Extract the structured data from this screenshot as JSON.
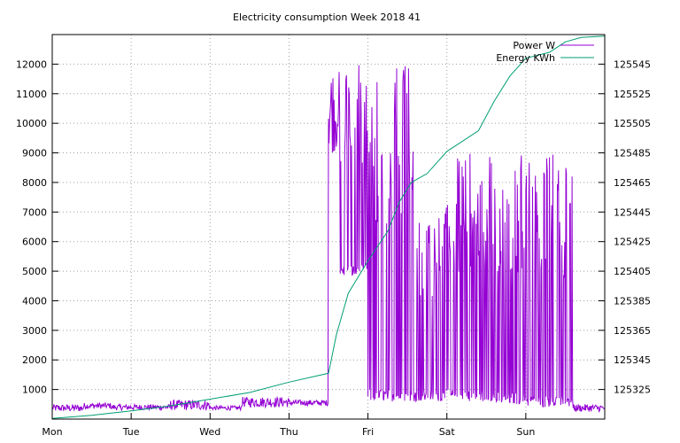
{
  "chart_data": {
    "type": "line",
    "title": "Electricity consumption Week 2018 41",
    "x_ticks": [
      "Mon",
      "Tue",
      "Wed",
      "Thu",
      "Fri",
      "Sat",
      "Sun"
    ],
    "y_left_ticks": [
      1000,
      2000,
      3000,
      4000,
      5000,
      6000,
      7000,
      8000,
      9000,
      10000,
      11000,
      12000
    ],
    "y_right_ticks": [
      125325,
      125345,
      125365,
      125385,
      125405,
      125425,
      125445,
      125465,
      125485,
      125505,
      125525,
      125545
    ],
    "y_left_range": [
      0,
      13000
    ],
    "y_right_range": [
      125305,
      125565
    ],
    "x_range_days": [
      0,
      7
    ],
    "grid": true,
    "legend_position": "top-right",
    "series": [
      {
        "name": "Power W",
        "axis": "left",
        "color": "#9400d3",
        "segments": [
          {
            "x_start": 0.0,
            "x_end": 0.4,
            "low": 250,
            "high": 500
          },
          {
            "x_start": 0.4,
            "x_end": 0.75,
            "low": 350,
            "high": 550
          },
          {
            "x_start": 0.75,
            "x_end": 1.5,
            "low": 300,
            "high": 500
          },
          {
            "x_start": 1.5,
            "x_end": 2.0,
            "low": 300,
            "high": 650
          },
          {
            "x_start": 2.0,
            "x_end": 2.4,
            "low": 300,
            "high": 450
          },
          {
            "x_start": 2.4,
            "x_end": 3.0,
            "low": 400,
            "high": 750
          },
          {
            "x_start": 3.0,
            "x_end": 3.5,
            "low": 450,
            "high": 650
          },
          {
            "x_start": 3.5,
            "x_end": 3.62,
            "low": 9000,
            "high": 12000
          },
          {
            "x_start": 3.62,
            "x_end": 4.0,
            "low": 4800,
            "high": 12000
          },
          {
            "x_start": 4.0,
            "x_end": 4.6,
            "low": 600,
            "high": 12000
          },
          {
            "x_start": 4.6,
            "x_end": 5.0,
            "low": 600,
            "high": 7200
          },
          {
            "x_start": 5.0,
            "x_end": 5.6,
            "low": 600,
            "high": 9000
          },
          {
            "x_start": 5.6,
            "x_end": 6.0,
            "low": 500,
            "high": 9000
          },
          {
            "x_start": 6.0,
            "x_end": 6.6,
            "low": 400,
            "high": 9000
          },
          {
            "x_start": 6.6,
            "x_end": 7.0,
            "low": 250,
            "high": 500
          }
        ]
      },
      {
        "name": "Energy KWh",
        "axis": "right",
        "color": "#009e73",
        "points": [
          [
            0.0,
            125305.5
          ],
          [
            0.5,
            125307.5
          ],
          [
            1.0,
            125310.5
          ],
          [
            1.5,
            125314
          ],
          [
            2.0,
            125318.5
          ],
          [
            2.5,
            125323
          ],
          [
            3.0,
            125330
          ],
          [
            3.5,
            125336
          ],
          [
            3.6,
            125362
          ],
          [
            3.75,
            125390
          ],
          [
            4.0,
            125412
          ],
          [
            4.25,
            125432
          ],
          [
            4.4,
            125452
          ],
          [
            4.55,
            125465
          ],
          [
            4.75,
            125471
          ],
          [
            5.0,
            125486
          ],
          [
            5.4,
            125500
          ],
          [
            5.6,
            125520
          ],
          [
            5.8,
            125537
          ],
          [
            6.0,
            125549
          ],
          [
            6.3,
            125553
          ],
          [
            6.5,
            125560
          ],
          [
            6.7,
            125563
          ],
          [
            7.0,
            125564
          ]
        ]
      }
    ]
  }
}
